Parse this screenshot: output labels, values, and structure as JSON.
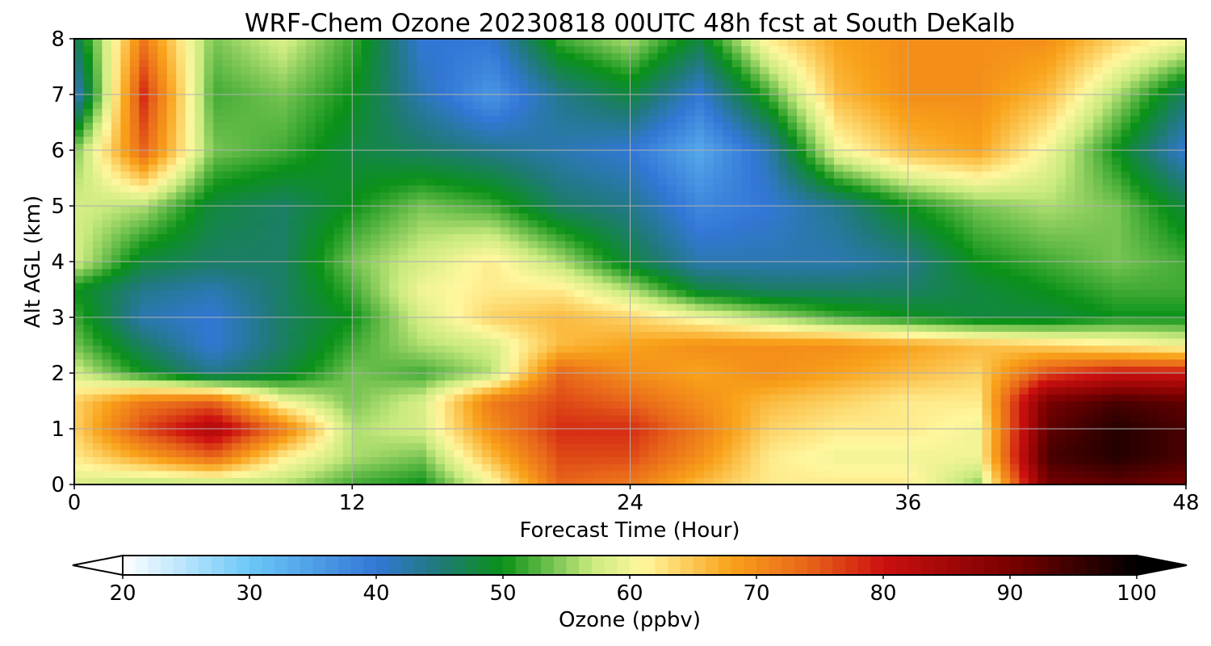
{
  "chart_data": {
    "type": "heatmap",
    "title": "WRF-Chem Ozone  20230818 00UTC 48h fcst at South DeKalb",
    "xlabel": "Forecast Time (Hour)",
    "ylabel": "Alt AGL (km)",
    "xlim": [
      0,
      48
    ],
    "ylim": [
      0,
      8
    ],
    "xticks": [
      0,
      12,
      24,
      36,
      48
    ],
    "yticks": [
      0,
      1,
      2,
      3,
      4,
      5,
      6,
      7,
      8
    ],
    "grid": true,
    "colorbar": {
      "label": "Ozone  (ppbv)",
      "orientation": "horizontal",
      "placement": "bottom",
      "range": [
        20,
        100
      ],
      "ticks": [
        20,
        30,
        40,
        50,
        60,
        70,
        80,
        90,
        100
      ],
      "extend": "both",
      "colors": {
        "min": "#ffffff",
        "cyan": "#6cc8f8",
        "blue": "#3377d6",
        "teal": "#1f7a78",
        "green": "#0a9118",
        "light_green": "#c9ea7e",
        "pale_yellow": "#fff79e",
        "orange": "#f9a21a",
        "dark_orange": "#e8661a",
        "red": "#cc1010",
        "dark_red": "#7a0000",
        "max": "#000000"
      }
    },
    "x_hours": [
      0,
      3,
      6,
      9,
      12,
      15,
      18,
      21,
      24,
      27,
      30,
      33,
      36,
      39,
      42,
      45,
      48
    ],
    "y_km": [
      0,
      0.5,
      1,
      1.5,
      2,
      2.5,
      3,
      3.5,
      4,
      5,
      6,
      7,
      8
    ],
    "z_ppbv": [
      [
        58,
        56,
        56,
        56,
        52,
        50,
        60,
        74,
        72,
        66,
        62,
        62,
        62,
        55,
        90,
        92,
        90
      ],
      [
        62,
        68,
        74,
        62,
        56,
        54,
        66,
        76,
        76,
        70,
        62,
        60,
        60,
        60,
        94,
        97,
        94
      ],
      [
        64,
        76,
        84,
        72,
        56,
        58,
        70,
        78,
        78,
        72,
        64,
        62,
        62,
        60,
        92,
        97,
        94
      ],
      [
        64,
        72,
        74,
        60,
        54,
        58,
        72,
        76,
        74,
        70,
        66,
        64,
        62,
        62,
        90,
        94,
        92
      ],
      [
        58,
        50,
        44,
        48,
        54,
        52,
        56,
        74,
        70,
        68,
        70,
        68,
        66,
        64,
        76,
        80,
        80
      ],
      [
        54,
        46,
        40,
        46,
        52,
        56,
        58,
        66,
        68,
        70,
        70,
        70,
        68,
        66,
        64,
        62,
        60
      ],
      [
        52,
        42,
        40,
        46,
        50,
        58,
        64,
        66,
        64,
        60,
        56,
        52,
        50,
        48,
        48,
        50,
        50
      ],
      [
        50,
        44,
        42,
        46,
        52,
        60,
        62,
        62,
        56,
        48,
        46,
        46,
        46,
        48,
        50,
        52,
        52
      ],
      [
        58,
        48,
        46,
        46,
        54,
        58,
        62,
        56,
        48,
        42,
        42,
        42,
        44,
        50,
        52,
        54,
        52
      ],
      [
        58,
        56,
        48,
        46,
        50,
        54,
        52,
        46,
        44,
        38,
        40,
        44,
        50,
        54,
        56,
        54,
        48
      ],
      [
        54,
        74,
        54,
        52,
        48,
        46,
        44,
        42,
        40,
        34,
        42,
        60,
        66,
        68,
        60,
        50,
        40
      ],
      [
        40,
        78,
        52,
        54,
        50,
        42,
        36,
        44,
        48,
        40,
        52,
        66,
        70,
        70,
        66,
        56,
        46
      ],
      [
        46,
        72,
        54,
        58,
        52,
        40,
        40,
        52,
        56,
        48,
        62,
        68,
        70,
        70,
        70,
        64,
        60
      ]
    ]
  }
}
